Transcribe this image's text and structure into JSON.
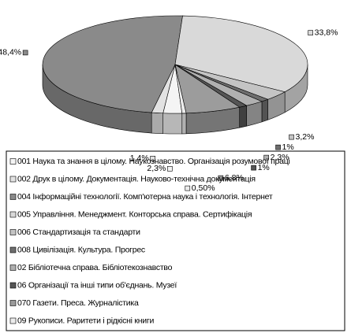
{
  "chart_data": {
    "type": "pie3d",
    "categories": [
      "001 Наука та знання в цілому. Наукознавство. Організація розумової праці",
      "002 Друк в цілому. Документація. Науково-технічна документація",
      "004 Інформаційні технології. Комп'ютерна наука і технологія. Інтернет",
      "005 Управління. Менеджмент. Конторська справа. Сертифікація",
      "006 Стандартизація  та стандарти",
      "008 Цивілізація. Культура. Прогрес",
      "02 Бібліотечна справа. Бібліотекознавство",
      "06 Організації та інші типи об'єднань. Музеї",
      "070 Газети. Преса. Журналістика",
      "09 Рукописи. Раритети  і рідкісні книги"
    ],
    "values": [
      2.3,
      1.4,
      48.4,
      33.8,
      3.2,
      1,
      2.3,
      1,
      6.8,
      0.5
    ],
    "value_labels": [
      "2,3%",
      "1,4%",
      "48,4%",
      "33,8%",
      "3,2%",
      "1%",
      "2,3%",
      "1%",
      "6,8%",
      "0,50%"
    ],
    "colors": [
      "#f4f4f4",
      "#e2e2e2",
      "#8a8a8a",
      "#d9d9d9",
      "#c4c4c4",
      "#6e6e6e",
      "#b0b0b0",
      "#555555",
      "#9c9c9c",
      "#ececec"
    ]
  }
}
